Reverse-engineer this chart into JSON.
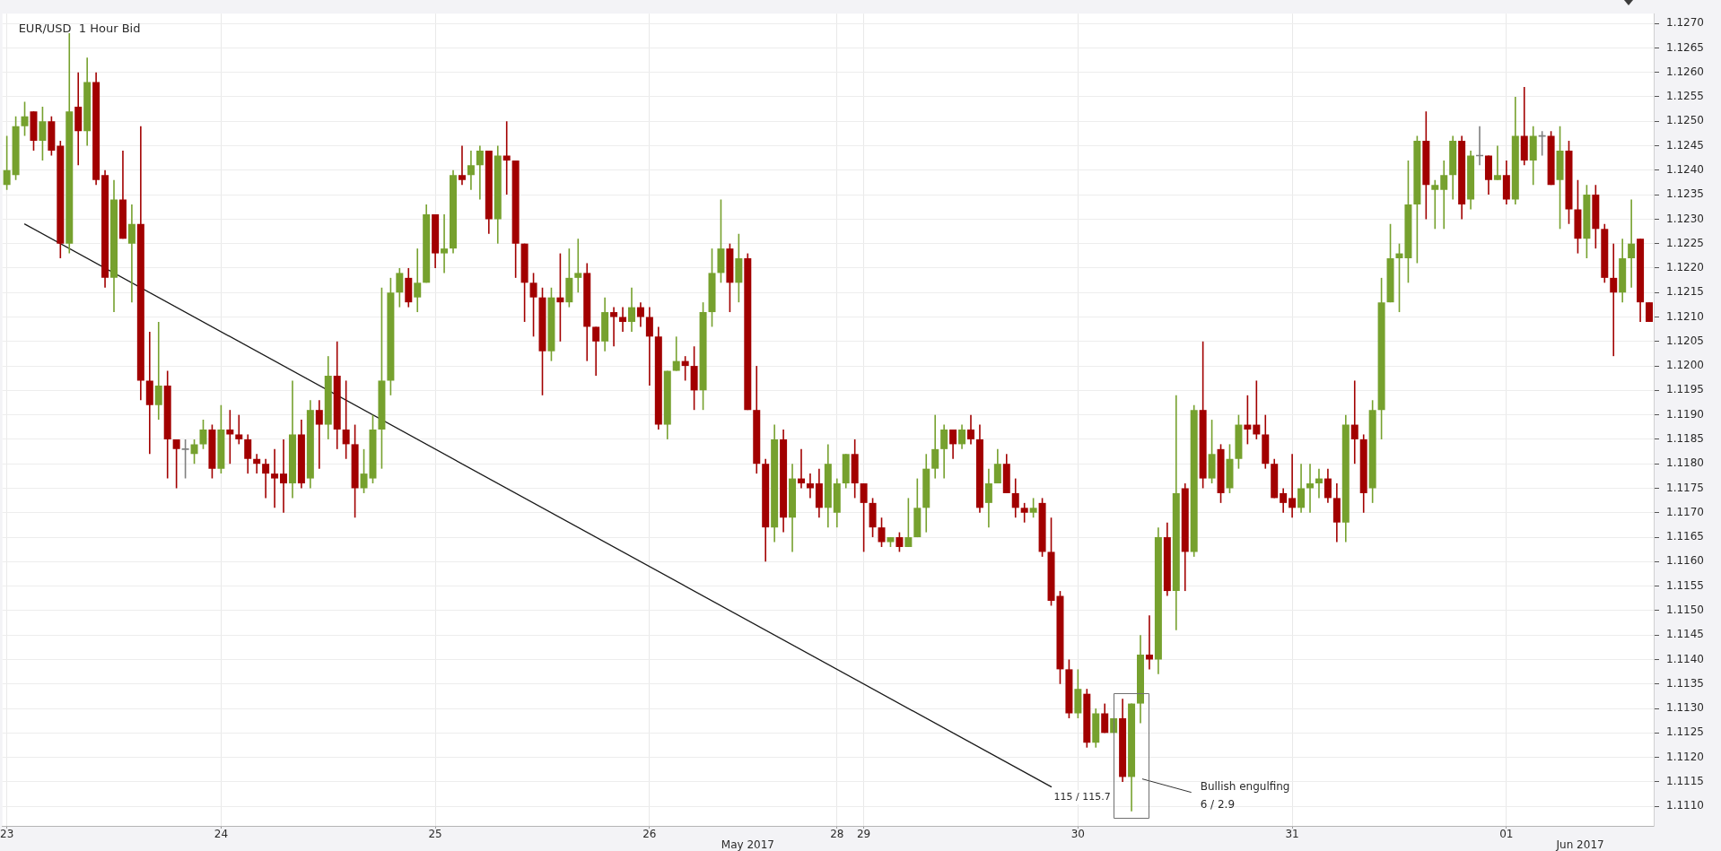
{
  "chart_data": {
    "type": "candlestick",
    "title": "EUR/USD  1 Hour Bid",
    "categories": [
      "23",
      null,
      null,
      null,
      null,
      null,
      null,
      null,
      null,
      null,
      null,
      null,
      null,
      null,
      null,
      null,
      null,
      null,
      null,
      null,
      null,
      null,
      null,
      null,
      "24",
      null,
      null,
      null,
      null,
      null,
      null,
      null,
      null,
      null,
      null,
      null,
      null,
      null,
      null,
      null,
      null,
      null,
      null,
      null,
      null,
      null,
      null,
      null,
      "25",
      null,
      null,
      null,
      null,
      null,
      null,
      null,
      null,
      null,
      null,
      null,
      null,
      null,
      null,
      null,
      null,
      null,
      null,
      null,
      null,
      null,
      null,
      null,
      "26",
      null,
      null,
      null,
      null,
      null,
      null,
      null,
      null,
      null,
      null,
      null,
      null,
      null,
      null,
      null,
      null,
      null,
      null,
      null,
      null,
      "28",
      null,
      null,
      "29",
      null,
      null,
      null,
      null,
      null,
      null,
      null,
      null,
      null,
      null,
      null,
      null,
      null,
      null,
      null,
      null,
      null,
      null,
      null,
      null,
      null,
      null,
      null,
      "30",
      null,
      null,
      null,
      null,
      null,
      null,
      null,
      null,
      null,
      null,
      null,
      null,
      null,
      null,
      null,
      null,
      null,
      null,
      null,
      null,
      null,
      null,
      null,
      "31",
      null,
      null,
      null,
      null,
      null,
      null,
      null,
      null,
      null,
      null,
      null,
      null,
      null,
      null,
      null,
      null,
      null,
      null,
      null,
      null,
      null,
      null,
      null,
      "01",
      null,
      null,
      null,
      null,
      null,
      null,
      null,
      null,
      null,
      null,
      null,
      null,
      null,
      null,
      null,
      null
    ],
    "ohlc": [
      [
        1.1237,
        1.1247,
        1.1236,
        1.124
      ],
      [
        1.1239,
        1.1251,
        1.1238,
        1.1249
      ],
      [
        1.1249,
        1.1254,
        1.1247,
        1.1251
      ],
      [
        1.1252,
        1.1252,
        1.1244,
        1.1246
      ],
      [
        1.1246,
        1.1253,
        1.1242,
        1.125
      ],
      [
        1.125,
        1.1251,
        1.1243,
        1.1244
      ],
      [
        1.1245,
        1.1246,
        1.1222,
        1.1225
      ],
      [
        1.1225,
        1.1268,
        1.1223,
        1.1252
      ],
      [
        1.1253,
        1.126,
        1.1241,
        1.1248
      ],
      [
        1.1248,
        1.1263,
        1.1245,
        1.1258
      ],
      [
        1.1258,
        1.126,
        1.1237,
        1.1238
      ],
      [
        1.1239,
        1.124,
        1.1216,
        1.1218
      ],
      [
        1.1218,
        1.1238,
        1.1211,
        1.1234
      ],
      [
        1.1234,
        1.1244,
        1.1226,
        1.1226
      ],
      [
        1.1225,
        1.1233,
        1.1213,
        1.1229
      ],
      [
        1.1229,
        1.1249,
        1.1193,
        1.1197
      ],
      [
        1.1197,
        1.1207,
        1.1182,
        1.1192
      ],
      [
        1.1192,
        1.1209,
        1.1189,
        1.1196
      ],
      [
        1.1196,
        1.1199,
        1.1177,
        1.1185
      ],
      [
        1.1185,
        1.1185,
        1.1175,
        1.1183
      ],
      [
        1.1183,
        1.1185,
        1.1177,
        1.1183
      ],
      [
        1.1182,
        1.1185,
        1.118,
        1.1184
      ],
      [
        1.1184,
        1.1189,
        1.1183,
        1.1187
      ],
      [
        1.1187,
        1.1188,
        1.1177,
        1.1179
      ],
      [
        1.1179,
        1.1192,
        1.1178,
        1.1187
      ],
      [
        1.1187,
        1.1191,
        1.118,
        1.1186
      ],
      [
        1.1186,
        1.119,
        1.1184,
        1.1185
      ],
      [
        1.1185,
        1.1186,
        1.1178,
        1.1181
      ],
      [
        1.1181,
        1.1182,
        1.1178,
        1.118
      ],
      [
        1.118,
        1.1181,
        1.1173,
        1.1178
      ],
      [
        1.1178,
        1.1183,
        1.1171,
        1.1177
      ],
      [
        1.1178,
        1.1185,
        1.117,
        1.1176
      ],
      [
        1.1176,
        1.1197,
        1.1173,
        1.1186
      ],
      [
        1.1186,
        1.1189,
        1.1175,
        1.1176
      ],
      [
        1.1177,
        1.1193,
        1.1175,
        1.1191
      ],
      [
        1.1191,
        1.1193,
        1.1179,
        1.1188
      ],
      [
        1.1188,
        1.1202,
        1.1185,
        1.1198
      ],
      [
        1.1198,
        1.1205,
        1.1183,
        1.1187
      ],
      [
        1.1187,
        1.1197,
        1.1181,
        1.1184
      ],
      [
        1.1184,
        1.1188,
        1.1169,
        1.1175
      ],
      [
        1.1175,
        1.1183,
        1.1174,
        1.1178
      ],
      [
        1.1177,
        1.119,
        1.1176,
        1.1187
      ],
      [
        1.1187,
        1.1216,
        1.1179,
        1.1197
      ],
      [
        1.1197,
        1.1218,
        1.1194,
        1.1215
      ],
      [
        1.1215,
        1.122,
        1.1212,
        1.1219
      ],
      [
        1.1218,
        1.122,
        1.1212,
        1.1213
      ],
      [
        1.1214,
        1.1224,
        1.1211,
        1.1217
      ],
      [
        1.1217,
        1.1233,
        1.1217,
        1.1231
      ],
      [
        1.1231,
        1.1231,
        1.122,
        1.1223
      ],
      [
        1.1223,
        1.1231,
        1.1219,
        1.1224
      ],
      [
        1.1224,
        1.124,
        1.1223,
        1.1239
      ],
      [
        1.1239,
        1.1245,
        1.1237,
        1.1238
      ],
      [
        1.1239,
        1.1244,
        1.1236,
        1.1241
      ],
      [
        1.1241,
        1.1245,
        1.1234,
        1.1244
      ],
      [
        1.1244,
        1.1244,
        1.1227,
        1.123
      ],
      [
        1.123,
        1.1245,
        1.1225,
        1.1243
      ],
      [
        1.1243,
        1.125,
        1.1235,
        1.1242
      ],
      [
        1.1242,
        1.1242,
        1.1218,
        1.1225
      ],
      [
        1.1225,
        1.1225,
        1.1209,
        1.1217
      ],
      [
        1.1217,
        1.1219,
        1.1206,
        1.1214
      ],
      [
        1.1214,
        1.1216,
        1.1194,
        1.1203
      ],
      [
        1.1203,
        1.1216,
        1.1201,
        1.1214
      ],
      [
        1.1214,
        1.1223,
        1.1205,
        1.1213
      ],
      [
        1.1213,
        1.1224,
        1.1212,
        1.1218
      ],
      [
        1.1218,
        1.1226,
        1.1215,
        1.1219
      ],
      [
        1.1219,
        1.1221,
        1.1201,
        1.1208
      ],
      [
        1.1208,
        1.1208,
        1.1198,
        1.1205
      ],
      [
        1.1205,
        1.1214,
        1.1203,
        1.1211
      ],
      [
        1.1211,
        1.1212,
        1.1204,
        1.121
      ],
      [
        1.121,
        1.1212,
        1.1207,
        1.1209
      ],
      [
        1.1209,
        1.1216,
        1.1207,
        1.1212
      ],
      [
        1.1212,
        1.1213,
        1.1208,
        1.121
      ],
      [
        1.121,
        1.1212,
        1.1196,
        1.1206
      ],
      [
        1.1206,
        1.1208,
        1.1187,
        1.1188
      ],
      [
        1.1188,
        1.1199,
        1.1185,
        1.1199
      ],
      [
        1.1199,
        1.1206,
        1.1199,
        1.1201
      ],
      [
        1.1201,
        1.1202,
        1.1197,
        1.12
      ],
      [
        1.12,
        1.1204,
        1.1191,
        1.1195
      ],
      [
        1.1195,
        1.1213,
        1.1191,
        1.1211
      ],
      [
        1.1211,
        1.1224,
        1.1208,
        1.1219
      ],
      [
        1.1219,
        1.1234,
        1.1217,
        1.1224
      ],
      [
        1.1224,
        1.1225,
        1.1211,
        1.1217
      ],
      [
        1.1217,
        1.1227,
        1.1213,
        1.1222
      ],
      [
        1.1222,
        1.1223,
        1.1191,
        1.1191
      ],
      [
        1.1191,
        1.12,
        1.1178,
        1.118
      ],
      [
        1.118,
        1.1181,
        1.116,
        1.1167
      ],
      [
        1.1167,
        1.1188,
        1.1164,
        1.1185
      ],
      [
        1.1185,
        1.1187,
        1.1166,
        1.1169
      ],
      [
        1.1169,
        1.118,
        1.1162,
        1.1177
      ],
      [
        1.1177,
        1.1183,
        1.1175,
        1.1176
      ],
      [
        1.1176,
        1.1178,
        1.1173,
        1.1175
      ],
      [
        1.1176,
        1.1179,
        1.1169,
        1.1171
      ],
      [
        1.1171,
        1.1184,
        1.1167,
        1.118
      ],
      [
        1.117,
        1.1177,
        1.1167,
        1.1176
      ],
      [
        1.1176,
        1.1182,
        1.1175,
        1.1182
      ],
      [
        1.1182,
        1.1185,
        1.1173,
        1.1176
      ],
      [
        1.1176,
        1.1176,
        1.1162,
        1.1172
      ],
      [
        1.1172,
        1.1173,
        1.1165,
        1.1167
      ],
      [
        1.1167,
        1.1169,
        1.1163,
        1.1164
      ],
      [
        1.1164,
        1.1165,
        1.1163,
        1.1165
      ],
      [
        1.1165,
        1.1166,
        1.1162,
        1.1163
      ],
      [
        1.1163,
        1.1173,
        1.1163,
        1.1165
      ],
      [
        1.1165,
        1.1177,
        1.1165,
        1.1171
      ],
      [
        1.1171,
        1.1182,
        1.1166,
        1.1179
      ],
      [
        1.1179,
        1.119,
        1.1177,
        1.1183
      ],
      [
        1.1183,
        1.1188,
        1.1177,
        1.1187
      ],
      [
        1.1187,
        1.1187,
        1.1181,
        1.1184
      ],
      [
        1.1184,
        1.1188,
        1.1183,
        1.1187
      ],
      [
        1.1187,
        1.119,
        1.1184,
        1.1185
      ],
      [
        1.1185,
        1.1188,
        1.117,
        1.1171
      ],
      [
        1.1172,
        1.1179,
        1.1167,
        1.1176
      ],
      [
        1.1176,
        1.1183,
        1.1176,
        1.118
      ],
      [
        1.118,
        1.1182,
        1.1174,
        1.1174
      ],
      [
        1.1174,
        1.1177,
        1.1169,
        1.1171
      ],
      [
        1.1171,
        1.1172,
        1.1168,
        1.117
      ],
      [
        1.117,
        1.1173,
        1.1169,
        1.1171
      ],
      [
        1.1172,
        1.1173,
        1.1161,
        1.1162
      ],
      [
        1.1162,
        1.1169,
        1.1151,
        1.1152
      ],
      [
        1.1153,
        1.1154,
        1.1135,
        1.1138
      ],
      [
        1.1138,
        1.114,
        1.1128,
        1.1129
      ],
      [
        1.1129,
        1.1138,
        1.1128,
        1.1134
      ],
      [
        1.1133,
        1.1134,
        1.1122,
        1.1123
      ],
      [
        1.1123,
        1.113,
        1.1122,
        1.1129
      ],
      [
        1.1129,
        1.1131,
        1.1125,
        1.1125
      ],
      [
        1.1125,
        1.1128,
        1.1125,
        1.1128
      ],
      [
        1.1128,
        1.1132,
        1.1115,
        1.1116
      ],
      [
        1.1116,
        1.1131,
        1.1109,
        1.1131
      ],
      [
        1.1131,
        1.1145,
        1.1127,
        1.1141
      ],
      [
        1.1141,
        1.1149,
        1.1138,
        1.114
      ],
      [
        1.114,
        1.1167,
        1.1137,
        1.1165
      ],
      [
        1.1165,
        1.1168,
        1.1153,
        1.1154
      ],
      [
        1.1154,
        1.1194,
        1.1146,
        1.1174
      ],
      [
        1.1175,
        1.1176,
        1.1154,
        1.1162
      ],
      [
        1.1162,
        1.1192,
        1.1161,
        1.1191
      ],
      [
        1.1191,
        1.1205,
        1.1175,
        1.1177
      ],
      [
        1.1177,
        1.1189,
        1.1176,
        1.1182
      ],
      [
        1.1183,
        1.1184,
        1.1172,
        1.1174
      ],
      [
        1.1175,
        1.1184,
        1.1174,
        1.1181
      ],
      [
        1.1181,
        1.119,
        1.1179,
        1.1188
      ],
      [
        1.1188,
        1.1194,
        1.1184,
        1.1187
      ],
      [
        1.1188,
        1.1197,
        1.1185,
        1.1186
      ],
      [
        1.1186,
        1.119,
        1.1179,
        1.118
      ],
      [
        1.118,
        1.1181,
        1.1173,
        1.1173
      ],
      [
        1.1174,
        1.1175,
        1.117,
        1.1172
      ],
      [
        1.1173,
        1.1182,
        1.1169,
        1.1171
      ],
      [
        1.1171,
        1.118,
        1.117,
        1.1175
      ],
      [
        1.1175,
        1.118,
        1.117,
        1.1176
      ],
      [
        1.1176,
        1.1179,
        1.1173,
        1.1177
      ],
      [
        1.1177,
        1.1179,
        1.1172,
        1.1173
      ],
      [
        1.1173,
        1.1176,
        1.1164,
        1.1168
      ],
      [
        1.1168,
        1.119,
        1.1164,
        1.1188
      ],
      [
        1.1188,
        1.1197,
        1.118,
        1.1185
      ],
      [
        1.1185,
        1.1186,
        1.117,
        1.1174
      ],
      [
        1.1175,
        1.1193,
        1.1172,
        1.1191
      ],
      [
        1.1191,
        1.1218,
        1.1185,
        1.1213
      ],
      [
        1.1213,
        1.1229,
        1.1213,
        1.1222
      ],
      [
        1.1222,
        1.1225,
        1.1211,
        1.1223
      ],
      [
        1.1222,
        1.1242,
        1.1217,
        1.1233
      ],
      [
        1.1233,
        1.1247,
        1.1221,
        1.1246
      ],
      [
        1.1246,
        1.1252,
        1.123,
        1.1237
      ],
      [
        1.1236,
        1.1238,
        1.1228,
        1.1237
      ],
      [
        1.1236,
        1.1242,
        1.1228,
        1.1239
      ],
      [
        1.1239,
        1.1247,
        1.1234,
        1.1246
      ],
      [
        1.1246,
        1.1247,
        1.123,
        1.1233
      ],
      [
        1.1234,
        1.1244,
        1.1232,
        1.1243
      ],
      [
        1.1243,
        1.1249,
        1.1241,
        1.1243
      ],
      [
        1.1243,
        1.1243,
        1.1235,
        1.1238
      ],
      [
        1.1238,
        1.1245,
        1.1238,
        1.1239
      ],
      [
        1.1239,
        1.1242,
        1.1233,
        1.1234
      ],
      [
        1.1234,
        1.1255,
        1.1233,
        1.1247
      ],
      [
        1.1247,
        1.1257,
        1.1241,
        1.1242
      ],
      [
        1.1242,
        1.1249,
        1.1237,
        1.1247
      ],
      [
        1.1247,
        1.1248,
        1.1243,
        1.1247
      ],
      [
        1.1247,
        1.1248,
        1.1237,
        1.1237
      ],
      [
        1.1238,
        1.1249,
        1.1228,
        1.1244
      ],
      [
        1.1244,
        1.1246,
        1.1229,
        1.1232
      ],
      [
        1.1232,
        1.1238,
        1.1223,
        1.1226
      ],
      [
        1.1226,
        1.1237,
        1.1222,
        1.1235
      ],
      [
        1.1235,
        1.1237,
        1.1224,
        1.1228
      ],
      [
        1.1228,
        1.1229,
        1.1217,
        1.1218
      ],
      [
        1.1218,
        1.1225,
        1.1202,
        1.1215
      ],
      [
        1.1215,
        1.1226,
        1.1213,
        1.1222
      ],
      [
        1.1222,
        1.1234,
        1.1216,
        1.1225
      ],
      [
        1.1226,
        1.1226,
        1.1209,
        1.1213
      ],
      [
        1.1213,
        1.1213,
        1.1209,
        1.1209
      ]
    ],
    "colors": [
      "#76a12e",
      "#76a12e",
      "#76a12e",
      "#a20000",
      "#76a12e",
      "#a20000",
      "#a20000",
      "#76a12e",
      "#a20000",
      "#76a12e",
      "#a20000",
      "#a20000",
      "#76a12e",
      "#a20000",
      "#76a12e",
      "#a20000",
      "#a20000",
      "#76a12e",
      "#a20000",
      "#a20000",
      "#7f7f7f",
      "#76a12e",
      "#76a12e",
      "#a20000",
      "#76a12e",
      "#a20000",
      "#a20000",
      "#a20000",
      "#a20000",
      "#a20000",
      "#a20000",
      "#a20000",
      "#76a12e",
      "#a20000",
      "#76a12e",
      "#a20000",
      "#76a12e",
      "#a20000",
      "#a20000",
      "#a20000",
      "#76a12e",
      "#76a12e",
      "#76a12e",
      "#76a12e",
      "#76a12e",
      "#a20000",
      "#76a12e",
      "#76a12e",
      "#a20000",
      "#76a12e",
      "#76a12e",
      "#a20000",
      "#76a12e",
      "#76a12e",
      "#a20000",
      "#76a12e",
      "#a20000",
      "#a20000",
      "#a20000",
      "#a20000",
      "#a20000",
      "#76a12e",
      "#a20000",
      "#76a12e",
      "#76a12e",
      "#a20000",
      "#a20000",
      "#76a12e",
      "#a20000",
      "#a20000",
      "#76a12e",
      "#a20000",
      "#a20000",
      "#a20000",
      "#76a12e",
      "#76a12e",
      "#a20000",
      "#a20000",
      "#76a12e",
      "#76a12e",
      "#76a12e",
      "#a20000",
      "#76a12e",
      "#a20000",
      "#a20000",
      "#a20000",
      "#76a12e",
      "#a20000",
      "#76a12e",
      "#a20000",
      "#a20000",
      "#a20000",
      "#76a12e",
      "#76a12e",
      "#76a12e",
      "#a20000",
      "#a20000",
      "#a20000",
      "#a20000",
      "#76a12e",
      "#a20000",
      "#76a12e",
      "#76a12e",
      "#76a12e",
      "#76a12e",
      "#76a12e",
      "#a20000",
      "#76a12e",
      "#a20000",
      "#a20000",
      "#76a12e",
      "#76a12e",
      "#a20000",
      "#a20000",
      "#a20000",
      "#76a12e",
      "#a20000",
      "#a20000",
      "#a20000",
      "#a20000",
      "#76a12e",
      "#a20000",
      "#76a12e",
      "#a20000",
      "#76a12e",
      "#a20000",
      "#76a12e",
      "#76a12e",
      "#a20000",
      "#76a12e",
      "#a20000",
      "#76a12e",
      "#a20000",
      "#76a12e",
      "#a20000",
      "#76a12e",
      "#a20000",
      "#76a12e",
      "#76a12e",
      "#a20000",
      "#a20000",
      "#a20000",
      "#a20000",
      "#a20000",
      "#a20000",
      "#76a12e",
      "#76a12e",
      "#76a12e",
      "#a20000",
      "#a20000",
      "#76a12e",
      "#a20000",
      "#a20000",
      "#76a12e",
      "#76a12e",
      "#76a12e",
      "#76a12e",
      "#76a12e",
      "#76a12e",
      "#a20000",
      "#76a12e",
      "#76a12e",
      "#76a12e",
      "#a20000",
      "#76a12e",
      "#7f7f7f",
      "#a20000",
      "#76a12e",
      "#a20000",
      "#76a12e",
      "#a20000",
      "#76a12e",
      "#7f7f7f",
      "#a20000",
      "#76a12e",
      "#a20000",
      "#a20000",
      "#76a12e",
      "#a20000",
      "#a20000",
      "#a20000",
      "#76a12e",
      "#76a12e",
      "#a20000",
      "#a20000"
    ],
    "series": [
      {
        "type": "line",
        "name": "115 / 115.7",
        "color": "#1a1a1a",
        "values": [
          null,
          null,
          1.1229,
          null,
          null,
          null,
          null,
          null,
          null,
          null,
          null,
          null,
          null,
          null,
          null,
          null,
          null,
          null,
          null,
          null,
          null,
          null,
          null,
          null,
          null,
          null,
          null,
          null,
          null,
          null,
          null,
          null,
          null,
          null,
          null,
          null,
          null,
          null,
          null,
          null,
          null,
          null,
          null,
          null,
          null,
          null,
          null,
          null,
          null,
          null,
          null,
          null,
          null,
          null,
          null,
          null,
          null,
          null,
          null,
          null,
          null,
          null,
          null,
          null,
          null,
          null,
          null,
          null,
          null,
          null,
          null,
          null,
          null,
          null,
          null,
          null,
          null,
          null,
          null,
          null,
          null,
          null,
          null,
          null,
          null,
          null,
          null,
          null,
          null,
          null,
          null,
          null,
          null,
          null,
          null,
          null,
          null,
          null,
          null,
          null,
          null,
          null,
          null,
          null,
          null,
          null,
          null,
          null,
          null,
          null,
          null,
          null,
          null,
          null,
          null,
          null,
          null,
          1.1114,
          null,
          null,
          null,
          null,
          null,
          null,
          null,
          null,
          null,
          null,
          null,
          null,
          null,
          null,
          null,
          null,
          null,
          null,
          null,
          null,
          null,
          null,
          null,
          null,
          null,
          null,
          null,
          null,
          null,
          null,
          null,
          null,
          null,
          null,
          null,
          null,
          null,
          null,
          null,
          null,
          null,
          null,
          null,
          null,
          null,
          null,
          null,
          null,
          null,
          null,
          null,
          null,
          null,
          null,
          null,
          null,
          null,
          null,
          null,
          null,
          null,
          null,
          null,
          null,
          null,
          null,
          null
        ]
      }
    ],
    "ylim": [
      1.1106,
      1.1272
    ],
    "yticks": [
      {
        "value": 1.111,
        "label": "1.1110"
      },
      1.1115,
      {
        "value": 1.112,
        "label": "1.1120"
      },
      1.1125,
      {
        "value": 1.113,
        "label": "1.1130"
      },
      1.1135,
      {
        "value": 1.114,
        "label": "1.1140"
      },
      1.1145,
      {
        "value": 1.115,
        "label": "1.1150"
      },
      1.1155,
      {
        "value": 1.116,
        "label": "1.1160"
      },
      1.1165,
      {
        "value": 1.117,
        "label": "1.1170"
      },
      1.1175,
      {
        "value": 1.118,
        "label": "1.1180"
      },
      1.1185,
      {
        "value": 1.119,
        "label": "1.1190"
      },
      1.1195,
      {
        "value": 1.12,
        "label": "1.1200"
      },
      1.1205,
      {
        "value": 1.121,
        "label": "1.1210"
      },
      1.1215,
      {
        "value": 1.122,
        "label": "1.1220"
      },
      1.1225,
      {
        "value": 1.123,
        "label": "1.1230"
      },
      1.1235,
      {
        "value": 1.124,
        "label": "1.1240"
      },
      1.1245,
      {
        "value": 1.125,
        "label": "1.1250"
      },
      1.1255,
      {
        "value": 1.126,
        "label": "1.1260"
      },
      1.1265,
      {
        "value": 1.127,
        "label": "1.1270"
      }
    ],
    "grid": true,
    "annotations": [
      "Bullish engulfing",
      "6 / 2.9",
      "May 2017",
      "Jun 2017"
    ]
  }
}
